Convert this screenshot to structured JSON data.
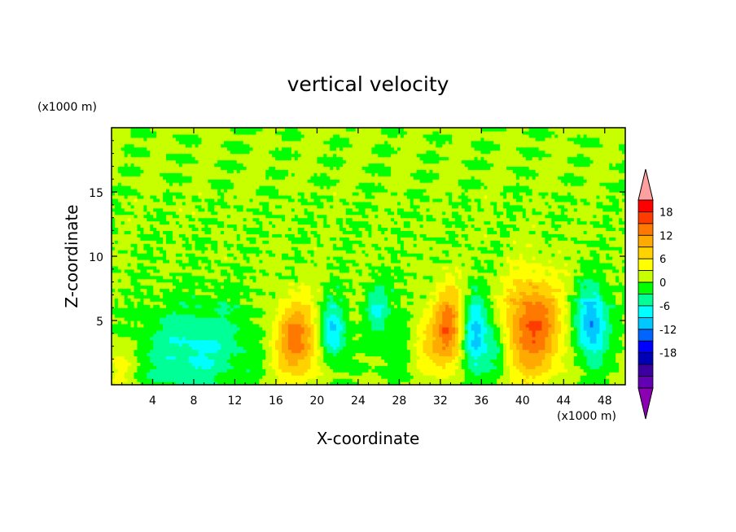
{
  "chart_data": {
    "type": "heatmap",
    "title": "vertical velocity",
    "xlabel": "X-coordinate",
    "ylabel": "Z-coordinate",
    "x_unit": "(x1000 m)",
    "y_unit": "(x1000 m)",
    "xlim": [
      0,
      50
    ],
    "ylim": [
      0,
      20
    ],
    "xticks": [
      4,
      8,
      12,
      16,
      20,
      24,
      28,
      32,
      36,
      40,
      44,
      48
    ],
    "yticks": [
      5,
      10,
      15
    ],
    "colorbar": {
      "ticks": [
        18,
        12,
        6,
        0,
        -6,
        -12,
        -18
      ],
      "levels": [
        21,
        18,
        15,
        12,
        9,
        6,
        3,
        0,
        -3,
        -6,
        -9,
        -12,
        -15,
        -18,
        -21
      ],
      "colors": [
        "#ff0000",
        "#ff3c00",
        "#ff7800",
        "#ffaa00",
        "#ffd200",
        "#ffff00",
        "#c8ff00",
        "#00ff00",
        "#00ff96",
        "#00ffff",
        "#00c8ff",
        "#0064ff",
        "#0000ff",
        "#0000b4",
        "#3c00a0",
        "#6400b4"
      ],
      "over_color": "#ffa0a0",
      "under_color": "#8c00b4"
    },
    "features": [
      {
        "x": 0.8,
        "z": 1.5,
        "amp": 4,
        "sx": 0.9,
        "sz": 1.2
      },
      {
        "x": 6,
        "z": 2.5,
        "amp": -4,
        "sx": 2.5,
        "sz": 2.5
      },
      {
        "x": 10,
        "z": 3,
        "amp": -5,
        "sx": 3,
        "sz": 2.5
      },
      {
        "x": 18,
        "z": 3.5,
        "amp": 13,
        "sx": 1.6,
        "sz": 2.2
      },
      {
        "x": 21.5,
        "z": 4.2,
        "amp": -11,
        "sx": 0.9,
        "sz": 1.6
      },
      {
        "x": 25.8,
        "z": 6,
        "amp": -6,
        "sx": 0.7,
        "sz": 1.2
      },
      {
        "x": 30.5,
        "z": 3.5,
        "amp": 6,
        "sx": 1.2,
        "sz": 2.0
      },
      {
        "x": 32.8,
        "z": 4.5,
        "amp": 13,
        "sx": 1.0,
        "sz": 2.3
      },
      {
        "x": 35.5,
        "z": 3.8,
        "amp": -11,
        "sx": 0.9,
        "sz": 2.2
      },
      {
        "x": 37.5,
        "z": 3.0,
        "amp": -6,
        "sx": 0.7,
        "sz": 1.5
      },
      {
        "x": 41,
        "z": 4.5,
        "amp": 15,
        "sx": 2.0,
        "sz": 2.8
      },
      {
        "x": 46.7,
        "z": 4.8,
        "amp": -13,
        "sx": 1.1,
        "sz": 2.0
      },
      {
        "x": 28,
        "z": 4,
        "amp": -3,
        "sx": 1.5,
        "sz": 2.5
      }
    ]
  }
}
